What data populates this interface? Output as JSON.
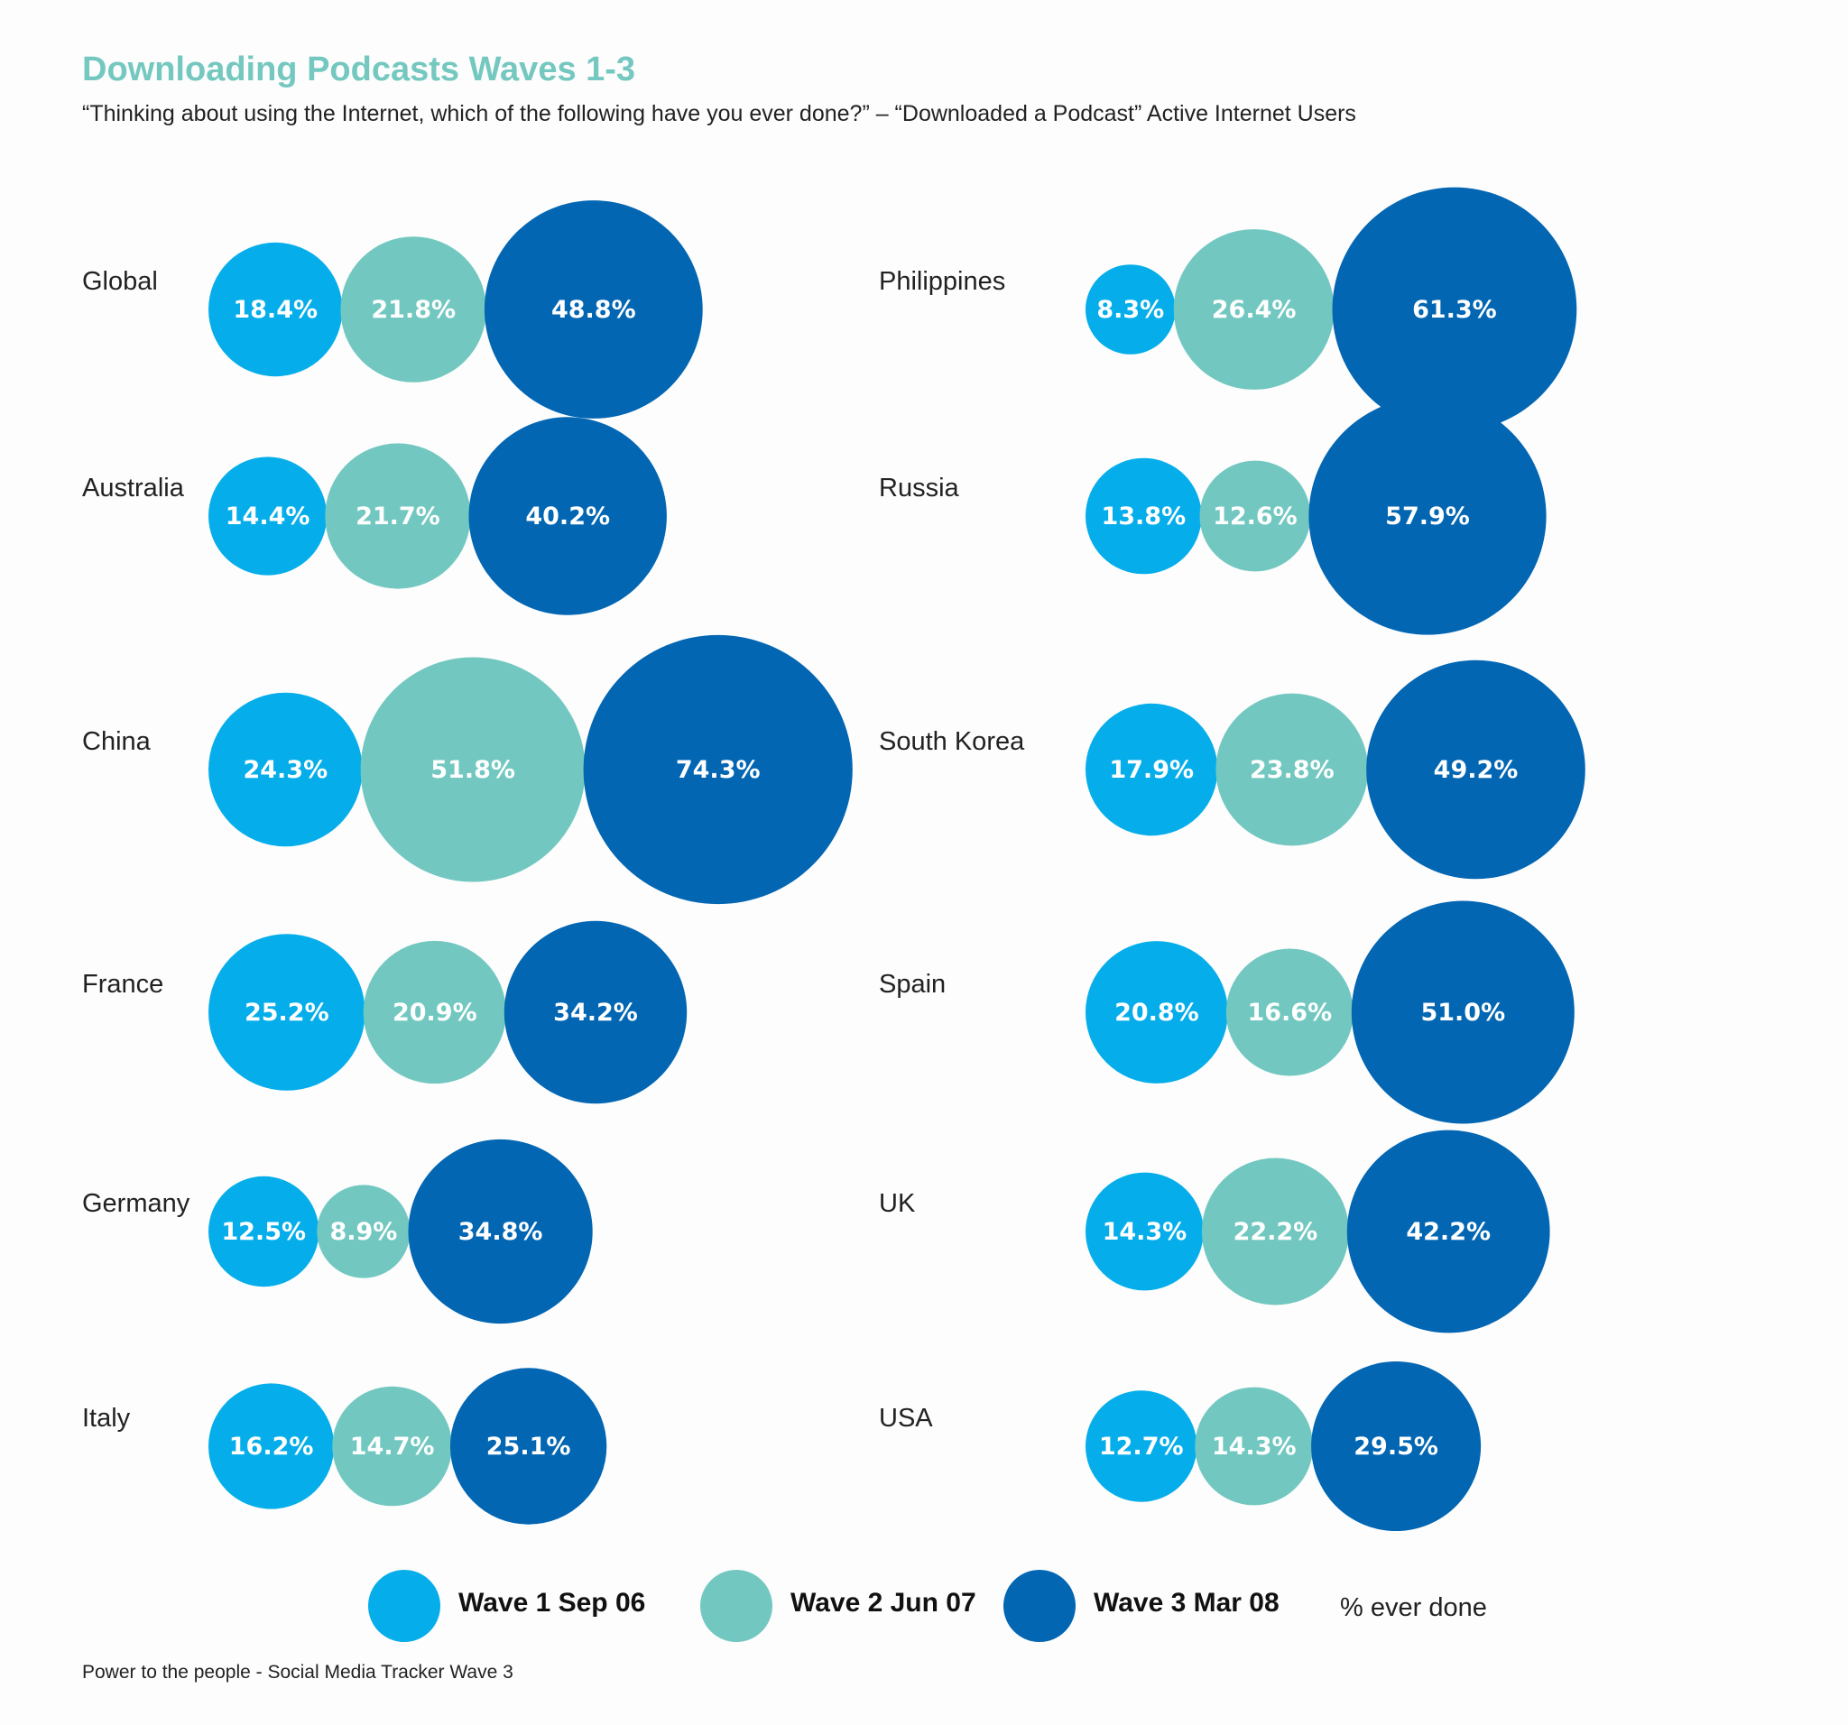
{
  "chart_data": {
    "type": "bubble",
    "title": "Downloading Podcasts Waves 1-3",
    "subtitle": "“Thinking about using the Internet, which of the following have you ever done?” – “Downloaded a Podcast” Active Internet Users",
    "unit_label": "% ever done",
    "series": [
      {
        "name": "Wave 1 Sep 06",
        "color": "#05aeea"
      },
      {
        "name": "Wave 2 Jun 07",
        "color": "#72c8c0"
      },
      {
        "name": "Wave 3 Mar 08",
        "color": "#0266b3"
      }
    ],
    "groups": [
      {
        "country": "Global",
        "values": [
          18.4,
          21.8,
          48.8
        ],
        "labels": [
          "18.4%",
          "21.8%",
          "48.8%"
        ]
      },
      {
        "country": "Australia",
        "values": [
          14.4,
          21.7,
          40.2
        ],
        "labels": [
          "14.4%",
          "21.7%",
          "40.2%"
        ]
      },
      {
        "country": "China",
        "values": [
          24.3,
          51.8,
          74.3
        ],
        "labels": [
          "24.3%",
          "51.8%",
          "74.3%"
        ]
      },
      {
        "country": "France",
        "values": [
          25.2,
          20.9,
          34.2
        ],
        "labels": [
          "25.2%",
          "20.9%",
          "34.2%"
        ]
      },
      {
        "country": "Germany",
        "values": [
          12.5,
          8.9,
          34.8
        ],
        "labels": [
          "12.5%",
          "8.9%",
          "34.8%"
        ]
      },
      {
        "country": "Italy",
        "values": [
          16.2,
          14.7,
          25.1
        ],
        "labels": [
          "16.2%",
          "14.7%",
          "25.1%"
        ]
      },
      {
        "country": "Philippines",
        "values": [
          8.3,
          26.4,
          61.3
        ],
        "labels": [
          "8.3%",
          "26.4%",
          "61.3%"
        ]
      },
      {
        "country": "Russia",
        "values": [
          13.8,
          12.6,
          57.9
        ],
        "labels": [
          "13.8%",
          "12.6%",
          "57.9%"
        ]
      },
      {
        "country": "South Korea",
        "values": [
          17.9,
          23.8,
          49.2
        ],
        "labels": [
          "17.9%",
          "23.8%",
          "49.2%"
        ]
      },
      {
        "country": "Spain",
        "values": [
          20.8,
          16.6,
          51.0
        ],
        "labels": [
          "20.8%",
          "16.6%",
          "51.0%"
        ]
      },
      {
        "country": "UK",
        "values": [
          14.3,
          22.2,
          42.2
        ],
        "labels": [
          "14.3%",
          "22.2%",
          "42.2%"
        ]
      },
      {
        "country": "USA",
        "values": [
          12.7,
          14.3,
          29.5
        ],
        "labels": [
          "12.7%",
          "14.3%",
          "29.5%"
        ]
      }
    ],
    "legend": [
      "Wave 1 Sep 06",
      "Wave 2 Jun 07",
      "Wave 3 Mar 08"
    ]
  },
  "footer": "Power to the people - Social Media Tracker Wave 3"
}
